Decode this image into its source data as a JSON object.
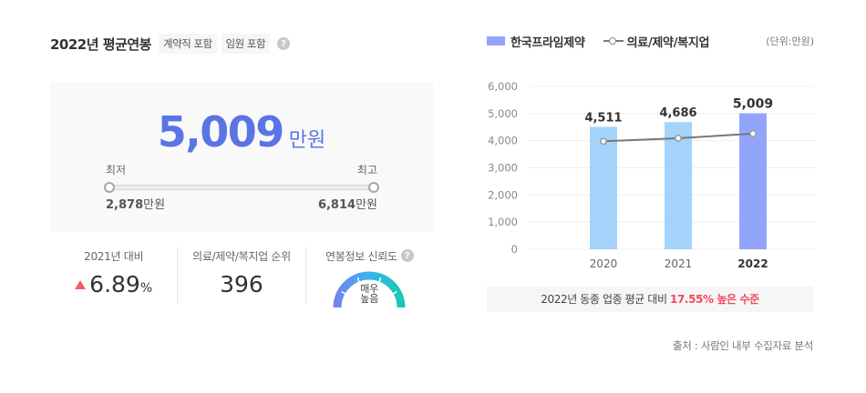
{
  "header": {
    "title": "2022년 평균연봉",
    "tags": [
      "계약직 포함",
      "임원 포함"
    ],
    "help_icon": "question-circle-icon"
  },
  "summary": {
    "average_value": "5,009",
    "average_unit": "만원",
    "min_label": "최저",
    "max_label": "최고",
    "min_value": "2,878",
    "max_value": "6,814",
    "value_unit": "만원"
  },
  "stats": [
    {
      "label": "2021년 대비",
      "value": "6.89",
      "suffix": "%",
      "trend": "up",
      "trend_color": "#f35c6a"
    },
    {
      "label": "의료/제약/복지업 순위",
      "value": "396"
    },
    {
      "label": "연봉정보 신뢰도",
      "gauge_text_line1": "매우",
      "gauge_text_line2": "높음",
      "help_icon": "question-circle-icon"
    }
  ],
  "legend": {
    "company": "한국프라임제약",
    "industry": "의료/제약/복지업",
    "unit": "(단위:만원)"
  },
  "chart_data": {
    "type": "bar",
    "title": "",
    "categories": [
      "2020",
      "2021",
      "2022"
    ],
    "series": [
      {
        "name": "한국프라임제약",
        "type": "bar",
        "values": [
          4511,
          4686,
          5009
        ],
        "colors": [
          "#a4d3fc",
          "#a4d3fc",
          "#93a5fb"
        ]
      },
      {
        "name": "의료/제약/복지업",
        "type": "line",
        "values": [
          3980,
          4090,
          4261
        ],
        "color": "#777777"
      }
    ],
    "data_labels": [
      "4,511",
      "4,686",
      "5,009"
    ],
    "yticks": [
      "0",
      "1,000",
      "2,000",
      "3,000",
      "4,000",
      "5,000",
      "6,000"
    ],
    "ylim": [
      0,
      6000
    ],
    "xlabel": "",
    "ylabel": "",
    "grid": true,
    "legend_position": "top"
  },
  "note": {
    "prefix": "2022년 동종 업종 평균 대비 ",
    "highlight": "17.55% 높은 수준"
  },
  "source": "출처 : 사람인 내부 수집자료 분석",
  "colors": {
    "accent": "#5b74e3",
    "bar_light": "#a4d3fc",
    "bar_highlight": "#93a5fb",
    "up": "#f35c6a",
    "highlight_text": "#f3485b"
  }
}
